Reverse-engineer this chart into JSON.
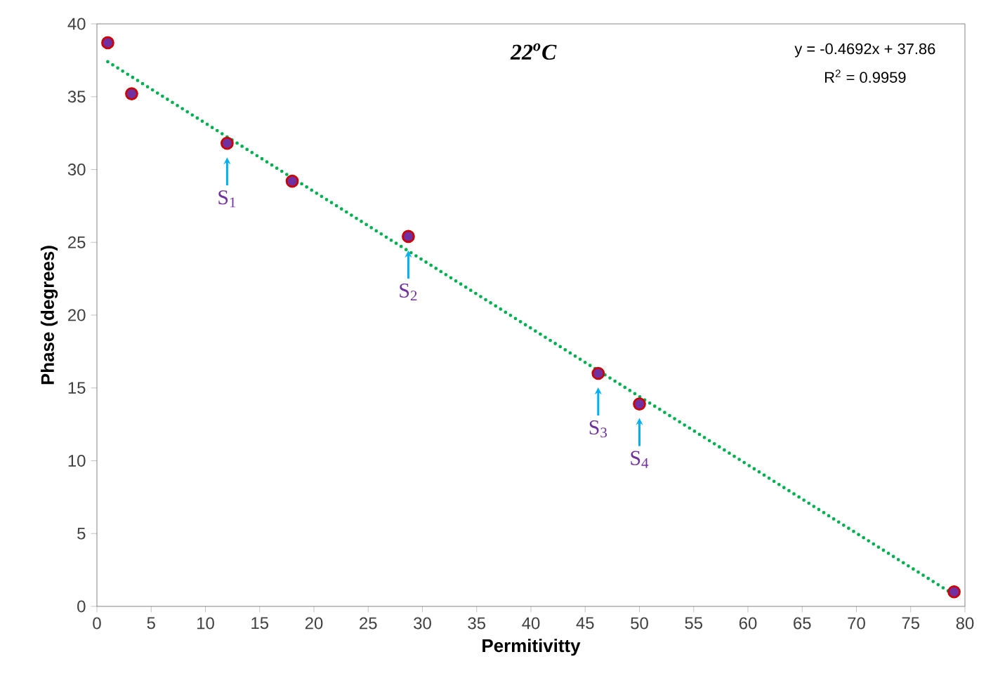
{
  "chart_data": {
    "type": "scatter",
    "title": "22$^{o}$C",
    "xlabel": "Permitivitty",
    "ylabel": "Phase (degrees)",
    "xlim": [
      0,
      80
    ],
    "ylim": [
      0,
      40
    ],
    "xticks": [
      0,
      5,
      10,
      15,
      20,
      25,
      30,
      35,
      40,
      45,
      50,
      55,
      60,
      65,
      70,
      75,
      80
    ],
    "yticks": [
      0,
      5,
      10,
      15,
      20,
      25,
      30,
      35,
      40
    ],
    "grid": false,
    "series": [
      {
        "marker": "circle",
        "color": "#7030a0",
        "x": [
          1,
          3.2,
          12,
          18,
          28.7,
          46.2,
          50,
          79
        ],
        "values": [
          38.7,
          35.2,
          31.8,
          29.2,
          25.4,
          16.0,
          13.9,
          1.0
        ]
      },
      {
        "type": "line",
        "marker": "none",
        "color": "#00b050",
        "line_style": "dotted",
        "x": [
          1,
          79
        ],
        "values": [
          37.4,
          0.8
        ]
      }
    ],
    "annotations": [
      "y = -0.4692x + 37.86",
      "R$^{2}$ = 0.9959",
      {
        "text": "S$_{1}$",
        "x": 12,
        "y": 31.8
      },
      {
        "text": "S$_{2}$",
        "x": 28.7,
        "y": 25.4
      },
      {
        "text": "S$_{3}$",
        "x": 46.2,
        "y": 16.0
      },
      {
        "text": "S$_{4}$",
        "x": 50,
        "y": 13.9
      }
    ]
  }
}
